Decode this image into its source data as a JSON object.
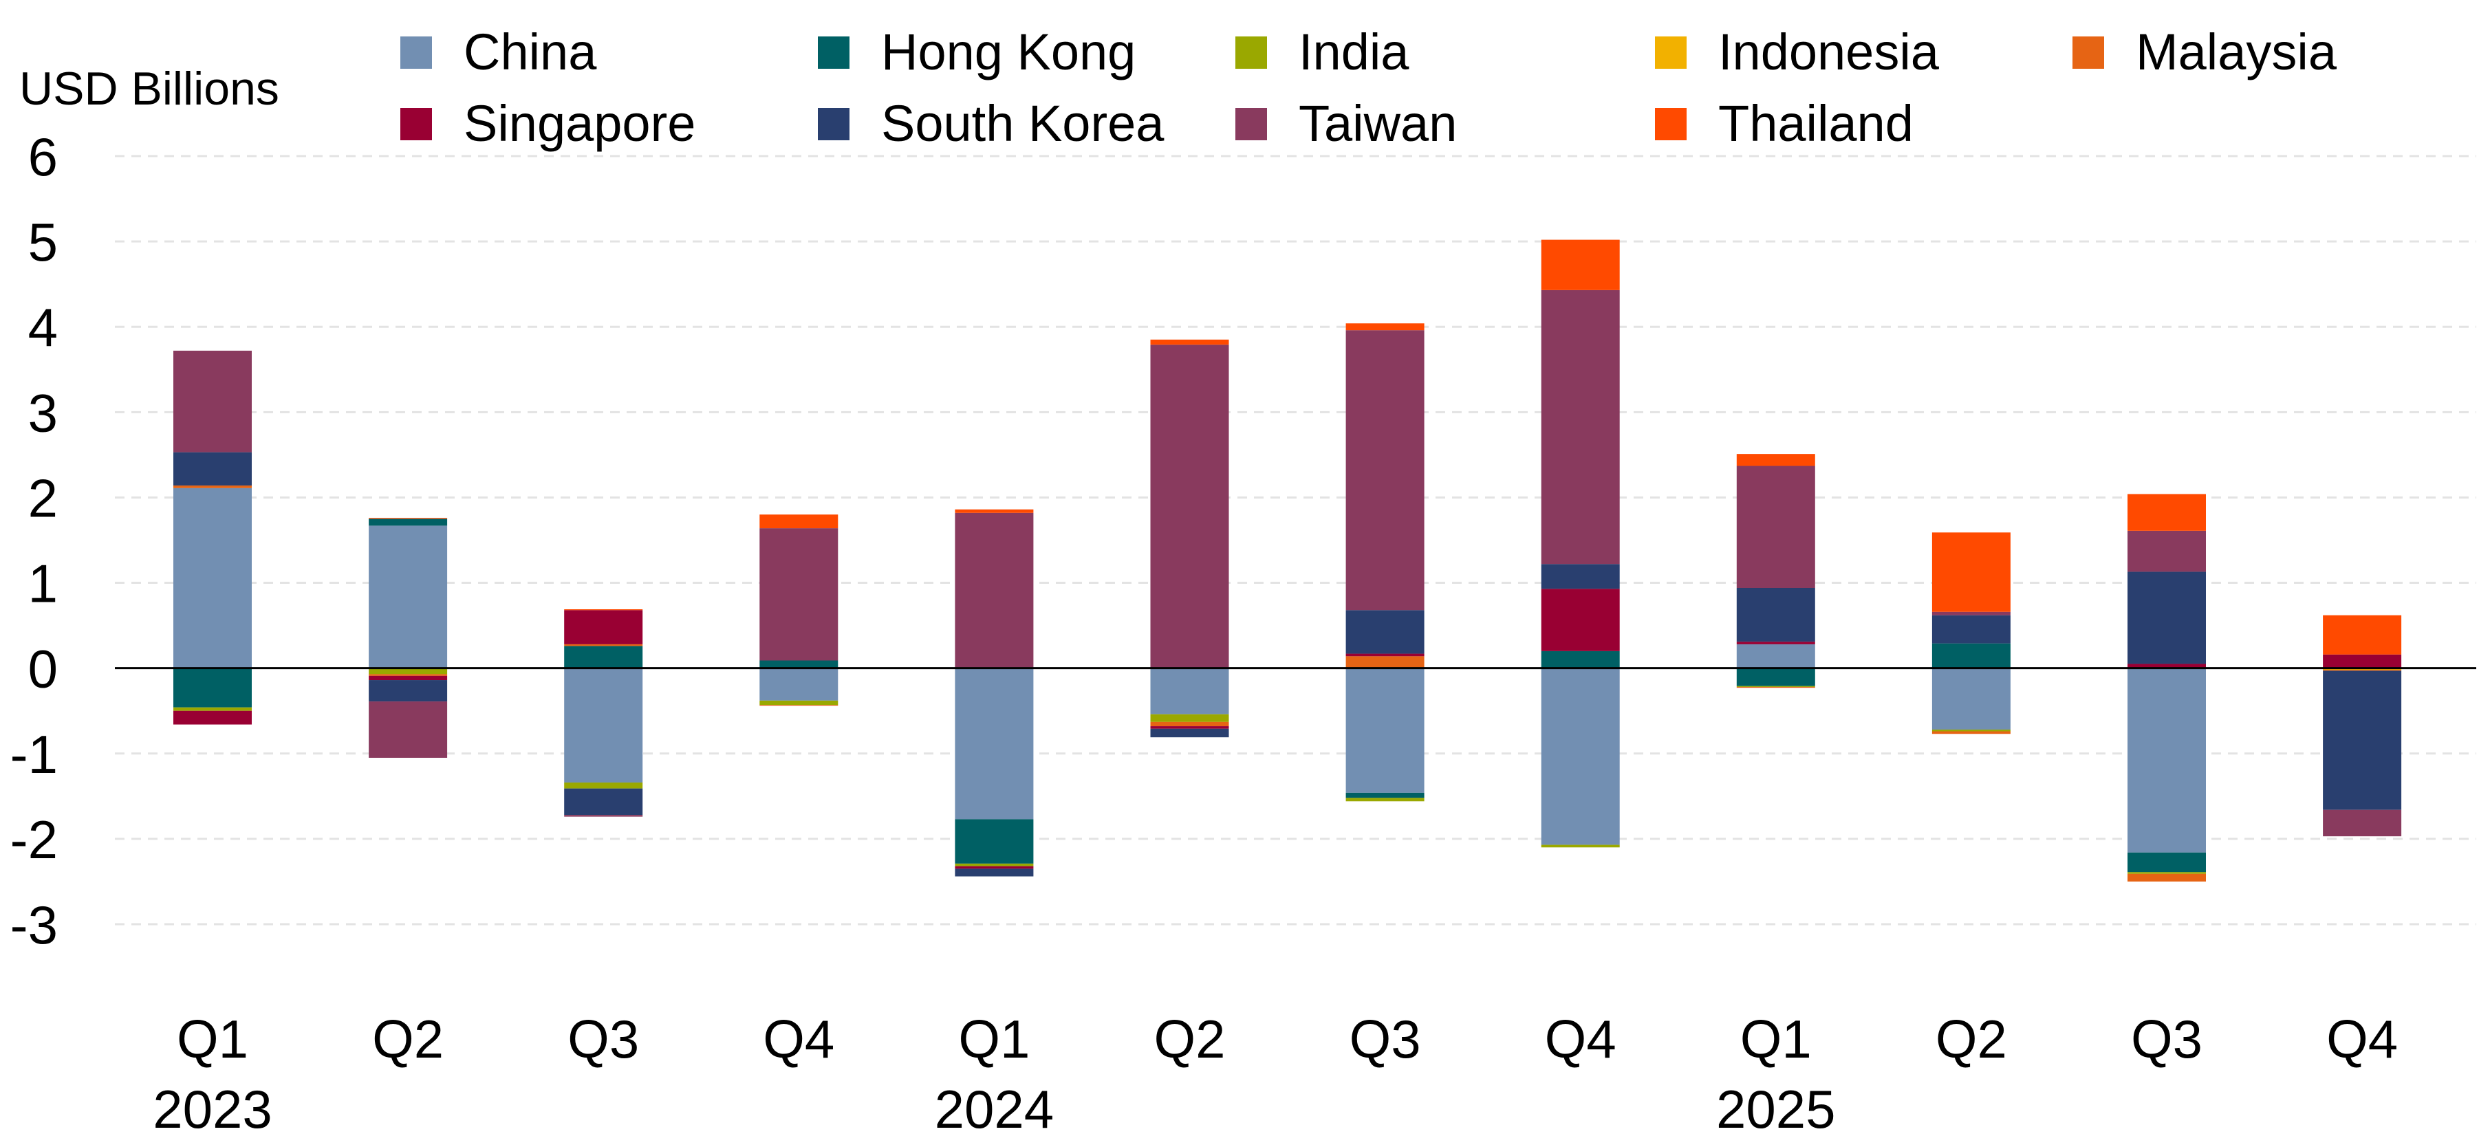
{
  "chart_data": {
    "type": "bar",
    "stacked": true,
    "ylabel": "USD Billions",
    "ylim": [
      -3,
      6
    ],
    "yticks": [
      "6",
      "5",
      "4",
      "3",
      "2",
      "1",
      "0",
      "-1",
      "-2",
      "-3"
    ],
    "ytick_values": [
      6,
      5,
      4,
      3,
      2,
      1,
      0,
      -1,
      -2,
      -3
    ],
    "grid": true,
    "legend_position": "top",
    "categories": [
      {
        "quarter": "Q1",
        "year": "2023"
      },
      {
        "quarter": "Q2",
        "year": ""
      },
      {
        "quarter": "Q3",
        "year": ""
      },
      {
        "quarter": "Q4",
        "year": ""
      },
      {
        "quarter": "Q1",
        "year": "2024"
      },
      {
        "quarter": "Q2",
        "year": ""
      },
      {
        "quarter": "Q3",
        "year": ""
      },
      {
        "quarter": "Q4",
        "year": ""
      },
      {
        "quarter": "Q1",
        "year": "2025"
      },
      {
        "quarter": "Q2",
        "year": ""
      },
      {
        "quarter": "Q3",
        "year": ""
      },
      {
        "quarter": "Q4",
        "year": ""
      }
    ],
    "series": [
      {
        "name": "China",
        "color": "#728fb2",
        "values": [
          2.11,
          1.67,
          -1.34,
          -0.38,
          -1.77,
          -0.54,
          -1.46,
          -2.07,
          0.28,
          -0.72,
          -2.16,
          0
        ]
      },
      {
        "name": "Hong Kong",
        "color": "#006064",
        "values": [
          -0.46,
          0.08,
          0.26,
          0.09,
          -0.52,
          0,
          -0.06,
          0.2,
          -0.21,
          0.29,
          -0.23,
          0
        ]
      },
      {
        "name": "India",
        "color": "#9aa800",
        "values": [
          -0.04,
          -0.07,
          -0.07,
          -0.05,
          -0.03,
          -0.09,
          -0.04,
          -0.03,
          -0.01,
          -0.02,
          -0.02,
          -0.01
        ]
      },
      {
        "name": "Indonesia",
        "color": "#f2b100",
        "values": [
          0,
          0,
          0,
          0,
          0,
          0,
          0,
          0,
          0,
          0,
          0,
          -0.01
        ]
      },
      {
        "name": "Malaysia",
        "color": "#e66414",
        "values": [
          0.03,
          -0.02,
          0.02,
          -0.01,
          0.01,
          -0.05,
          0.14,
          0,
          -0.01,
          -0.03,
          -0.09,
          -0.01
        ]
      },
      {
        "name": "Singapore",
        "color": "#990033",
        "values": [
          -0.16,
          -0.05,
          0.4,
          0,
          -0.03,
          -0.03,
          0.03,
          0.73,
          0.03,
          0,
          0.05,
          0.16
        ]
      },
      {
        "name": "South Korea",
        "color": "#293f6f",
        "values": [
          0.39,
          -0.25,
          -0.31,
          0,
          -0.09,
          -0.1,
          0.51,
          0.29,
          0.63,
          0.33,
          1.08,
          -1.63
        ]
      },
      {
        "name": "Taiwan",
        "color": "#893a5e",
        "values": [
          1.19,
          -0.66,
          -0.02,
          1.55,
          1.81,
          3.79,
          3.28,
          3.21,
          1.43,
          0.04,
          0.48,
          -0.31
        ]
      },
      {
        "name": "Thailand",
        "color": "#ff4a00",
        "values": [
          0,
          0.01,
          0.01,
          0.16,
          0.04,
          0.06,
          0.08,
          0.59,
          0.14,
          0.93,
          0.43,
          0.46
        ]
      }
    ]
  }
}
